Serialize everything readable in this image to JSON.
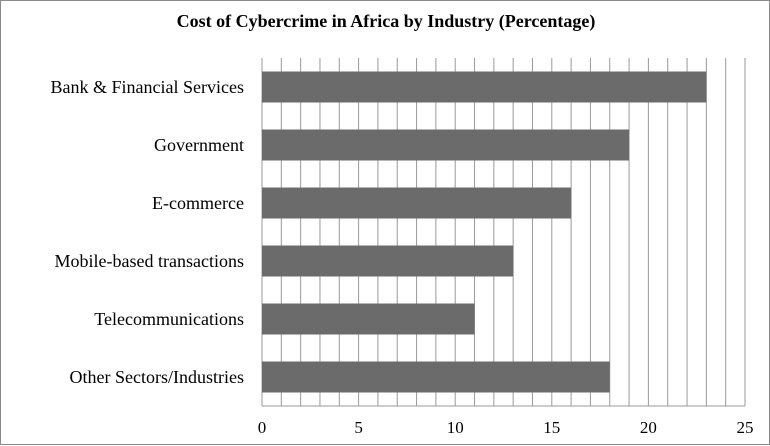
{
  "chart_data": {
    "type": "bar",
    "orientation": "horizontal",
    "title": "Cost of Cybercrime in Africa by Industry (Percentage)",
    "categories": [
      "Bank & Financial Services",
      "Government",
      "E-commerce",
      "Mobile-based transactions",
      "Telecommunications",
      "Other Sectors/Industries"
    ],
    "values": [
      23,
      19,
      16,
      13,
      11,
      18
    ],
    "xlim": [
      0,
      25
    ],
    "xticks": [
      0,
      5,
      10,
      15,
      20,
      25
    ],
    "grid": "vertical gridlines every 1 unit",
    "bar_color": "#6b6b6b",
    "legend": "none"
  }
}
